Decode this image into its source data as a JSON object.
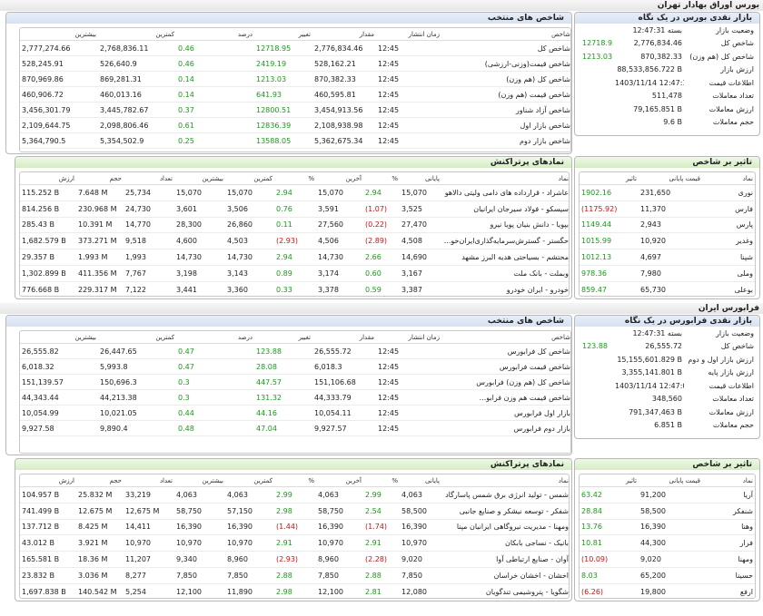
{
  "tehran": {
    "section_title": "بورس اوراق بهادار تهران",
    "market_box_title": "بازار نقدی بورس در یک نگاه",
    "market": [
      {
        "label": "وضعیت بازار",
        "value": "بسته 12:47:31",
        "change": ""
      },
      {
        "label": "شاخص کل",
        "value": "2,776,834.46",
        "change": "12718.95"
      },
      {
        "label": "شاخص کل (هم وزن)",
        "value": "870,382.33",
        "change": "1213.03"
      },
      {
        "label": "ارزش بازار",
        "value": "88,533,856.722 B",
        "change": ""
      },
      {
        "label": "اطلاعات قیمت",
        "value": "1403/11/14 12:47:12",
        "change": ""
      },
      {
        "label": "تعداد معاملات",
        "value": "511,478",
        "change": ""
      },
      {
        "label": "ارزش معاملات",
        "value": "79,165.851 B",
        "change": ""
      },
      {
        "label": "حجم معاملات",
        "value": "9.6 B",
        "change": ""
      }
    ],
    "indices_title": "شاخص های منتخب",
    "indices_headers": [
      "شاخص",
      "زمان انتشار",
      "مقدار",
      "تغییر",
      "درصد",
      "کمترین",
      "بیشترین"
    ],
    "indices": [
      {
        "name": "شاخص کل",
        "time": "12:45",
        "value": "2,776,834.46",
        "change": "12718.95",
        "pct": "0.46",
        "low": "2,768,836.11",
        "high": "2,777,274.66",
        "sign": "pos"
      },
      {
        "name": "شاخص قیمت(وزنی-ارزشی)",
        "time": "12:45",
        "value": "528,162.21",
        "change": "2419.19",
        "pct": "0.46",
        "low": "526,640.9",
        "high": "528,245.91",
        "sign": "pos"
      },
      {
        "name": "شاخص کل (هم وزن)",
        "time": "12:45",
        "value": "870,382.33",
        "change": "1213.03",
        "pct": "0.14",
        "low": "869,281.31",
        "high": "870,969.86",
        "sign": "pos"
      },
      {
        "name": "شاخص قیمت (هم وزن)",
        "time": "12:45",
        "value": "460,595.81",
        "change": "641.93",
        "pct": "0.14",
        "low": "460,013.16",
        "high": "460,906.72",
        "sign": "pos"
      },
      {
        "name": "شاخص آزاد شناور",
        "time": "12:45",
        "value": "3,454,913.56",
        "change": "12800.51",
        "pct": "0.37",
        "low": "3,445,782.67",
        "high": "3,456,301.79",
        "sign": "pos"
      },
      {
        "name": "شاخص بازار اول",
        "time": "12:45",
        "value": "2,108,938.98",
        "change": "12836.39",
        "pct": "0.61",
        "low": "2,098,806.46",
        "high": "2,109,644.75",
        "sign": "pos"
      },
      {
        "name": "شاخص بازار دوم",
        "time": "12:45",
        "value": "5,362,675.34",
        "change": "13588.05",
        "pct": "0.25",
        "low": "5,354,502.9",
        "high": "5,364,790.5",
        "sign": "pos"
      }
    ],
    "impact_title": "تاثیر بر شاخص",
    "impact_headers": [
      "نماد",
      "قیمت پایانی",
      "تاثیر"
    ],
    "impact": [
      {
        "symbol": "نوری",
        "price": "231,650",
        "effect": "1902.16",
        "sign": "pos"
      },
      {
        "symbol": "فارس",
        "price": "11,370",
        "effect": "(1175.92)",
        "sign": "neg"
      },
      {
        "symbol": "پارس",
        "price": "2,943",
        "effect": "1149.44",
        "sign": "pos"
      },
      {
        "symbol": "وغدیر",
        "price": "10,920",
        "effect": "1015.99",
        "sign": "pos"
      },
      {
        "symbol": "شپنا",
        "price": "4,697",
        "effect": "1012.13",
        "sign": "pos"
      },
      {
        "symbol": "وملی",
        "price": "7,980",
        "effect": "978.36",
        "sign": "pos"
      },
      {
        "symbol": "بوعلی",
        "price": "65,730",
        "effect": "859.47",
        "sign": "pos"
      }
    ],
    "symbols_title": "نمادهای پرتراکنش",
    "symbols_headers": [
      "نماد",
      "پایانی",
      "%",
      "آخرین",
      "%",
      "کمترین",
      "بیشترین",
      "تعداد",
      "حجم",
      "ارزش"
    ],
    "symbols": [
      {
        "name": "عاشراد - قرارداده های دامی ولیتی دالاهو",
        "close": "15,070",
        "cpct": "2.94",
        "last": "15,070",
        "lpct": "2.94",
        "low": "15,070",
        "high": "15,070",
        "count": "25,734",
        "vol": "7.648 M",
        "value": "115.252 B",
        "cs": "pos",
        "ls": "pos"
      },
      {
        "name": "سیسکو - فولاد سیرجان ایرانیان",
        "close": "3,525",
        "cpct": "(1.07)",
        "last": "3,591",
        "lpct": "0.76",
        "low": "3,506",
        "high": "3,601",
        "count": "24,730",
        "vol": "230.968 M",
        "value": "814.256 B",
        "cs": "neg",
        "ls": "pos"
      },
      {
        "name": "بپویا - دانش بنیان پویا نیرو",
        "close": "27,470",
        "cpct": "(0.22)",
        "last": "27,560",
        "lpct": "0.11",
        "low": "26,860",
        "high": "28,300",
        "count": "14,770",
        "vol": "10.391 M",
        "value": "285.43 B",
        "cs": "neg",
        "ls": "pos"
      },
      {
        "name": "حگستر - گسترش‌سرمایه‌گذاری‌ایران‌خو...",
        "close": "4,508",
        "cpct": "(2.89)",
        "last": "4,506",
        "lpct": "(2.93)",
        "low": "4,503",
        "high": "4,600",
        "count": "9,518",
        "vol": "373.271 M",
        "value": "1,682.579 B",
        "cs": "neg",
        "ls": "neg"
      },
      {
        "name": "محتشم - بسیاحتی هدیه البرز مشهد",
        "close": "14,690",
        "cpct": "2.66",
        "last": "14,730",
        "lpct": "2.94",
        "low": "14,730",
        "high": "14,730",
        "count": "1,993",
        "vol": "1.993 M",
        "value": "29.357 B",
        "cs": "pos",
        "ls": "pos"
      },
      {
        "name": "وبملت - بانک ملت",
        "close": "3,167",
        "cpct": "0.60",
        "last": "3,174",
        "lpct": "0.89",
        "low": "3,143",
        "high": "3,198",
        "count": "7,767",
        "vol": "411.356 M",
        "value": "1,302.899 B",
        "cs": "pos",
        "ls": "pos"
      },
      {
        "name": "خودرو - ایران خودرو",
        "close": "3,387",
        "cpct": "0.59",
        "last": "3,378",
        "lpct": "0.33",
        "low": "3,360",
        "high": "3,441",
        "count": "7,122",
        "vol": "229.317 M",
        "value": "776.668 B",
        "cs": "pos",
        "ls": "pos"
      }
    ]
  },
  "farabourse": {
    "section_title": "فرابورس ایران",
    "market_box_title": "بازار نقدی فرابورس در یک نگاه",
    "market": [
      {
        "label": "وضعیت بازار",
        "value": "بسته 12:47:31",
        "change": ""
      },
      {
        "label": "شاخص کل",
        "value": "26,555.72",
        "change": "123.88"
      },
      {
        "label": "ارزش بازار اول و دوم",
        "value": "15,155,601.829 B",
        "change": ""
      },
      {
        "label": "ارزش بازار پایه",
        "value": "3,355,141.801 B",
        "change": ""
      },
      {
        "label": "اطلاعات قیمت",
        "value": "1403/11/14 12:47:08",
        "change": ""
      },
      {
        "label": "تعداد معاملات",
        "value": "348,560",
        "change": ""
      },
      {
        "label": "ارزش معاملات",
        "value": "791,347,463 B",
        "change": ""
      },
      {
        "label": "حجم معاملات",
        "value": "6.851 B",
        "change": ""
      }
    ],
    "indices_title": "شاخص های منتخب",
    "indices_headers": [
      "شاخص",
      "زمان انتشار",
      "مقدار",
      "تغییر",
      "درصد",
      "کمترین",
      "بیشترین"
    ],
    "indices": [
      {
        "name": "شاخص کل فرابورس",
        "time": "12:45",
        "value": "26,555.72",
        "change": "123.88",
        "pct": "0.47",
        "low": "26,447.65",
        "high": "26,555.82",
        "sign": "pos"
      },
      {
        "name": "شاخص قیمت فرابورس",
        "time": "12:45",
        "value": "6,018.3",
        "change": "28.08",
        "pct": "0.47",
        "low": "5,993.8",
        "high": "6,018.32",
        "sign": "pos"
      },
      {
        "name": "شاخص کل (هم وزن) فرابورس",
        "time": "12:45",
        "value": "151,106.68",
        "change": "447.57",
        "pct": "0.3",
        "low": "150,696.3",
        "high": "151,139.57",
        "sign": "pos"
      },
      {
        "name": "شاخص قیمت هم وزن فرابو...",
        "time": "12:45",
        "value": "44,333.79",
        "change": "131.32",
        "pct": "0.3",
        "low": "44,213.38",
        "high": "44,343.44",
        "sign": "pos"
      },
      {
        "name": "بازار اول فرابورس",
        "time": "12:45",
        "value": "10,054.11",
        "change": "44.16",
        "pct": "0.44",
        "low": "10,021.05",
        "high": "10,054.99",
        "sign": "pos"
      },
      {
        "name": "بازار دوم فرابورس",
        "time": "12:45",
        "value": "9,927.57",
        "change": "47.04",
        "pct": "0.48",
        "low": "9,890.4",
        "high": "9,927.58",
        "sign": "pos"
      }
    ],
    "impact_title": "تاثیر بر شاخص",
    "impact_headers": [
      "نماد",
      "قیمت پایانی",
      "تاثیر"
    ],
    "impact": [
      {
        "symbol": "آریا",
        "price": "91,200",
        "effect": "63.42",
        "sign": "pos"
      },
      {
        "symbol": "شنفکر",
        "price": "58,500",
        "effect": "28.84",
        "sign": "pos"
      },
      {
        "symbol": "وهنا",
        "price": "16,390",
        "effect": "13.76",
        "sign": "pos"
      },
      {
        "symbol": "فرار",
        "price": "44,300",
        "effect": "10.81",
        "sign": "pos"
      },
      {
        "symbol": "ومهنا",
        "price": "9,020",
        "effect": "(10.09)",
        "sign": "neg"
      },
      {
        "symbol": "حسینا",
        "price": "65,200",
        "effect": "8.03",
        "sign": "pos"
      },
      {
        "symbol": "ارفع",
        "price": "19,800",
        "effect": "(6.26)",
        "sign": "neg"
      }
    ],
    "symbols_title": "نمادهای پرتراکنش",
    "symbols_headers": [
      "نماد",
      "پایانی",
      "%",
      "آخرین",
      "%",
      "کمترین",
      "بیشترین",
      "تعداد",
      "حجم",
      "ارزش"
    ],
    "symbols": [
      {
        "name": "شمس - تولید انرژی برق شمس پاسارگاد",
        "close": "4,063",
        "cpct": "2.99",
        "last": "4,063",
        "lpct": "2.99",
        "low": "4,063",
        "high": "4,063",
        "count": "33,219",
        "vol": "25.832 M",
        "value": "104.957 B",
        "cs": "pos",
        "ls": "pos"
      },
      {
        "name": "شفکر - توسعه نیشکر و صنایع جانبی",
        "close": "58,500",
        "cpct": "2.54",
        "last": "58,750",
        "lpct": "2.98",
        "low": "57,150",
        "high": "58,750",
        "count": "12,675 M",
        "vol": "12.675 M",
        "value": "741.499 B",
        "cs": "pos",
        "ls": "pos"
      },
      {
        "name": "ومهنا - مدیریت نیروگاهی ایرانیان مپنا",
        "close": "16,390",
        "cpct": "(1.74)",
        "last": "16,390",
        "lpct": "(1.44)",
        "low": "16,390",
        "high": "16,390",
        "count": "14,411",
        "vol": "8.425 M",
        "value": "137.712 B",
        "cs": "neg",
        "ls": "neg"
      },
      {
        "name": "بانیک - نساجی بابکان",
        "close": "10,970",
        "cpct": "2.91",
        "last": "10,970",
        "lpct": "2.91",
        "low": "10,970",
        "high": "10,970",
        "count": "10,970",
        "vol": "3.921 M",
        "value": "43.012 B",
        "cs": "pos",
        "ls": "pos"
      },
      {
        "name": "آوان - صنایع ارتباطی آوا",
        "close": "9,020",
        "cpct": "(2.28)",
        "last": "8,960",
        "lpct": "(2.93)",
        "low": "8,960",
        "high": "9,340",
        "count": "11,207",
        "vol": "18.36 M",
        "value": "165.581 B",
        "cs": "neg",
        "ls": "neg"
      },
      {
        "name": "اخشان - اخشان خراسان",
        "close": "7,850",
        "cpct": "2.88",
        "last": "7,850",
        "lpct": "2.88",
        "low": "7,850",
        "high": "7,850",
        "count": "8,277",
        "vol": "3.036 M",
        "value": "23.832 B",
        "cs": "pos",
        "ls": "pos"
      },
      {
        "name": "شگویا - پتروشیمی تندگویان",
        "close": "12,080",
        "cpct": "2.81",
        "last": "12,100",
        "lpct": "2.98",
        "low": "11,890",
        "high": "12,100",
        "count": "5,254",
        "vol": "140.542 M",
        "value": "1,697.838 B",
        "cs": "pos",
        "ls": "pos"
      }
    ]
  }
}
